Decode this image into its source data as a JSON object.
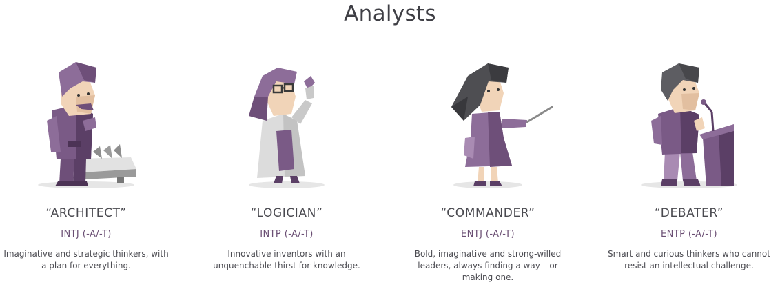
{
  "section": {
    "title": "Analysts"
  },
  "types": [
    {
      "name": "“ARCHITECT”",
      "code": "INTJ (-A/-T)",
      "description": "Imaginative and strategic thinkers, with a plan for everything.",
      "illustration_icon": "architect-figure-icon"
    },
    {
      "name": "“LOGICIAN”",
      "code": "INTP (-A/-T)",
      "description": "Innovative inventors with an unquenchable thirst for knowledge.",
      "illustration_icon": "logician-figure-icon"
    },
    {
      "name": "“COMMANDER”",
      "code": "ENTJ (-A/-T)",
      "description": "Bold, imaginative and strong-willed leaders, always finding a way – or making one.",
      "illustration_icon": "commander-figure-icon"
    },
    {
      "name": "“DEBATER”",
      "code": "ENTP (-A/-T)",
      "description": "Smart and curious thinkers who cannot resist an intellectual challenge.",
      "illustration_icon": "debater-figure-icon"
    }
  ],
  "colors": {
    "accent_purple": "#7a5a86",
    "dark_purple": "#5b3f66",
    "light_purple": "#a98bb3",
    "skin": "#f1d4b8",
    "text": "#4b4b50"
  }
}
